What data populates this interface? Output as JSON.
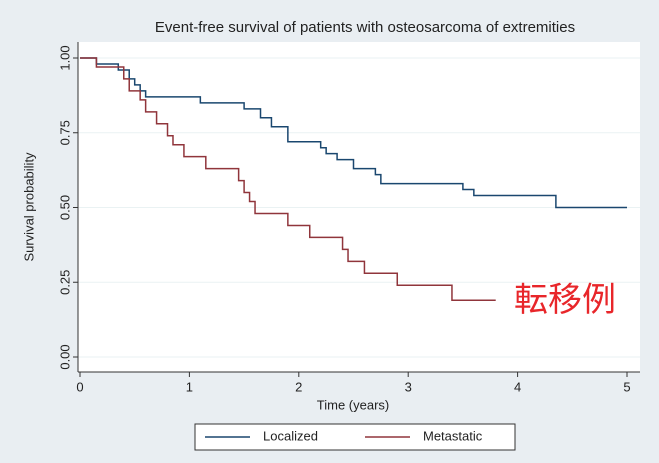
{
  "chart_data": {
    "type": "step",
    "title": "Event-free survival of patients with osteosarcoma of extremities",
    "x_label": "Time (years)",
    "y_label": "Survival probability",
    "annotation": "転移例",
    "xlim": [
      0,
      5
    ],
    "xticks": [
      0,
      1,
      2,
      3,
      4,
      5
    ],
    "ylim": [
      0,
      1
    ],
    "yticks": [
      {
        "value": 0,
        "label": "0.00"
      },
      {
        "value": 0.25,
        "label": "0.25"
      },
      {
        "value": 0.5,
        "label": "0.50"
      },
      {
        "value": 0.75,
        "label": "0.75"
      },
      {
        "value": 1,
        "label": "1.00"
      }
    ],
    "grid": true,
    "series": [
      {
        "name": "Localized",
        "color": "#1a476f",
        "x": [
          0,
          0.15,
          0.35,
          0.45,
          0.5,
          0.55,
          0.6,
          1.1,
          1.5,
          1.65,
          1.75,
          1.9,
          2.2,
          2.25,
          2.35,
          2.5,
          2.7,
          2.75,
          3.5,
          3.6,
          4.35,
          5
        ],
        "values": [
          1,
          0.98,
          0.96,
          0.93,
          0.91,
          0.89,
          0.87,
          0.85,
          0.83,
          0.8,
          0.77,
          0.72,
          0.7,
          0.68,
          0.66,
          0.63,
          0.61,
          0.58,
          0.56,
          0.54,
          0.5,
          0.5
        ]
      },
      {
        "name": "Metastatic",
        "color": "#90353b",
        "x": [
          0,
          0.15,
          0.4,
          0.45,
          0.55,
          0.6,
          0.7,
          0.8,
          0.85,
          0.95,
          1.15,
          1.45,
          1.5,
          1.55,
          1.6,
          1.9,
          2.1,
          2.4,
          2.45,
          2.6,
          2.9,
          3.4,
          3.8
        ],
        "values": [
          1,
          0.97,
          0.93,
          0.89,
          0.86,
          0.82,
          0.78,
          0.74,
          0.71,
          0.67,
          0.63,
          0.59,
          0.55,
          0.52,
          0.48,
          0.44,
          0.4,
          0.36,
          0.32,
          0.28,
          0.24,
          0.19,
          0.19
        ]
      }
    ]
  }
}
